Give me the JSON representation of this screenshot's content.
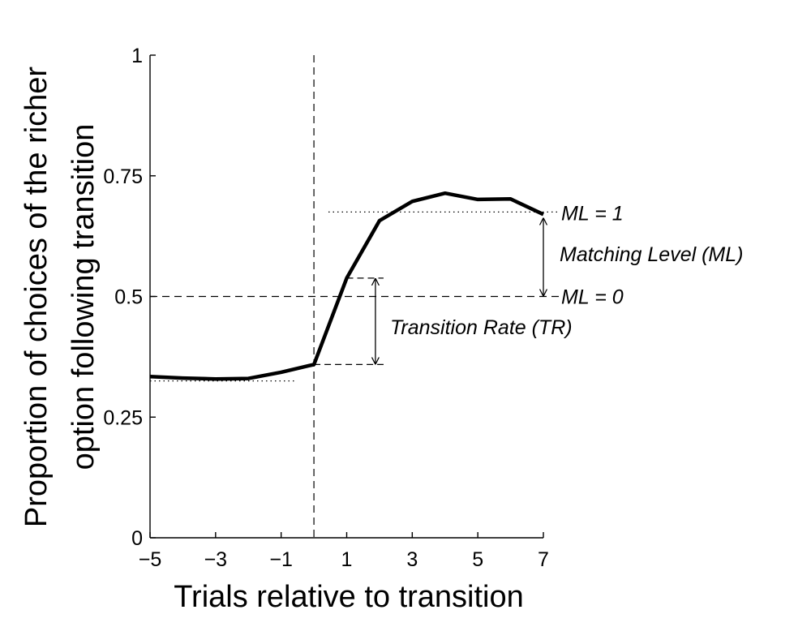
{
  "chart_data": {
    "type": "line",
    "title": "",
    "xlabel": "Trials relative to transition",
    "ylabel_lines": [
      "Proportion of choices of the richer",
      "option following transition"
    ],
    "xlim": [
      -5,
      7
    ],
    "ylim": [
      0,
      1
    ],
    "xticks": [
      -5,
      -3,
      -1,
      1,
      3,
      5,
      7
    ],
    "xtick_labels": [
      "−5",
      "−3",
      "−1",
      "1",
      "3",
      "5",
      "7"
    ],
    "yticks": [
      0,
      0.25,
      0.5,
      0.75,
      1
    ],
    "ytick_labels": [
      "0",
      "0.25",
      "0.5",
      "0.75",
      "1"
    ],
    "grid": false,
    "series": [
      {
        "x": [
          -5,
          -4,
          -3,
          -2,
          -1,
          0,
          1,
          2,
          3,
          4,
          5,
          6,
          7
        ],
        "y": [
          0.334,
          0.331,
          0.329,
          0.33,
          0.343,
          0.359,
          0.538,
          0.657,
          0.697,
          0.714,
          0.701,
          0.702,
          0.67
        ]
      }
    ],
    "reference_lines": {
      "vertical_dashed_x": 0,
      "horizontal_dashed_y": 0.5,
      "baseline_dotted_y": 0.325,
      "ml1_dotted_y": 0.675
    },
    "annotations": {
      "ml1": "ML = 1",
      "ml0": "ML = 0",
      "matching_level": "Matching Level (ML)",
      "transition_rate": "Transition Rate (TR)"
    }
  }
}
